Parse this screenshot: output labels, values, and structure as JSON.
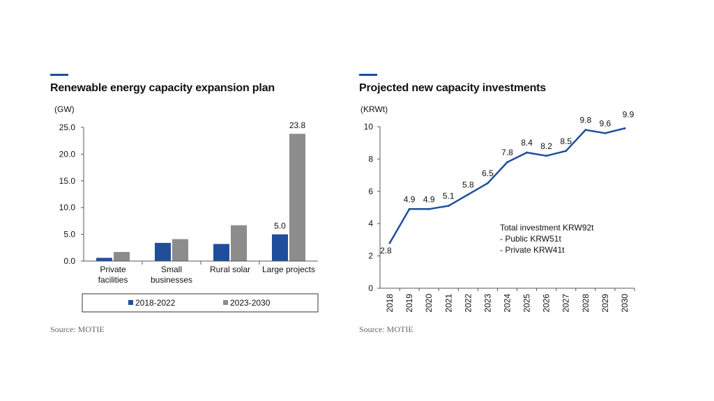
{
  "chart_data": [
    {
      "type": "bar",
      "title": "Renewable energy capacity expansion plan",
      "unit_label": "(GW)",
      "categories": [
        [
          "Private",
          "facilities"
        ],
        [
          "Small",
          "businesses"
        ],
        [
          "Rural solar"
        ],
        [
          "Large projects"
        ]
      ],
      "series": [
        {
          "name": "2018-2022",
          "color": "#1f4e9c",
          "values": [
            0.6,
            3.4,
            3.2,
            5.0
          ]
        },
        {
          "name": "2023-2030",
          "color": "#8c8c8c",
          "values": [
            1.7,
            4.1,
            6.7,
            23.8
          ]
        }
      ],
      "data_labels": [
        {
          "series": 0,
          "index": 3,
          "text": "5.0"
        },
        {
          "series": 1,
          "index": 3,
          "text": "23.8"
        }
      ],
      "yticks": [
        "0.0",
        "5.0",
        "10.0",
        "15.0",
        "20.0",
        "25.0"
      ],
      "ylim": [
        0,
        25
      ],
      "legend_position": "bottom",
      "source": "Source: MOTIE"
    },
    {
      "type": "line",
      "title": "Projected new capacity investments",
      "unit_label": "(KRWt)",
      "x": [
        "2018",
        "2019",
        "2020",
        "2021",
        "2022",
        "2023",
        "2024",
        "2025",
        "2026",
        "2027",
        "2028",
        "2029",
        "2030"
      ],
      "values": [
        2.8,
        4.9,
        4.9,
        5.1,
        5.8,
        6.5,
        7.8,
        8.4,
        8.2,
        8.5,
        9.8,
        9.6,
        9.9
      ],
      "labels": [
        "2.8",
        "4.9",
        "4.9",
        "5.1",
        "5.8",
        "6.5",
        "7.8",
        "8.4",
        "8.2",
        "8.5",
        "9.8",
        "9.6",
        "9.9"
      ],
      "color": "#1f4e9c",
      "yticks": [
        "0",
        "2",
        "4",
        "6",
        "8",
        "10"
      ],
      "ylim": [
        0,
        10
      ],
      "annotation": [
        "Total investment KRW92t",
        "- Public KRW51t",
        "- Private KRW41t"
      ],
      "source": "Source: MOTIE"
    }
  ]
}
